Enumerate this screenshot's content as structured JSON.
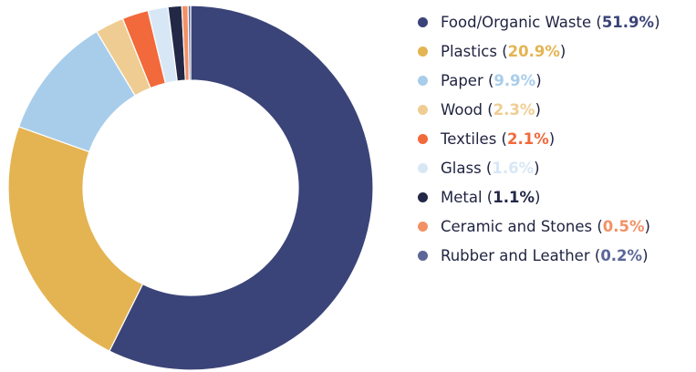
{
  "chart_data": {
    "type": "pie",
    "donut": true,
    "legend_position": "right",
    "categories": [
      "Food/Organic Waste",
      "Plastics",
      "Paper",
      "Wood",
      "Textiles",
      "Glass",
      "Metal",
      "Ceramic and Stones",
      "Rubber and Leather"
    ],
    "values": [
      51.9,
      20.9,
      9.9,
      2.3,
      2.1,
      1.6,
      1.1,
      0.5,
      0.2
    ],
    "value_labels": [
      "51.9%",
      "20.9%",
      "9.9%",
      "2.3%",
      "2.1%",
      "1.6%",
      "1.1%",
      "0.5%",
      "0.2%"
    ],
    "colors": [
      "#3b4478",
      "#e4b452",
      "#a8cdea",
      "#efcd92",
      "#f2693b",
      "#d8e7f6",
      "#232846",
      "#f29166",
      "#5c6697"
    ]
  }
}
